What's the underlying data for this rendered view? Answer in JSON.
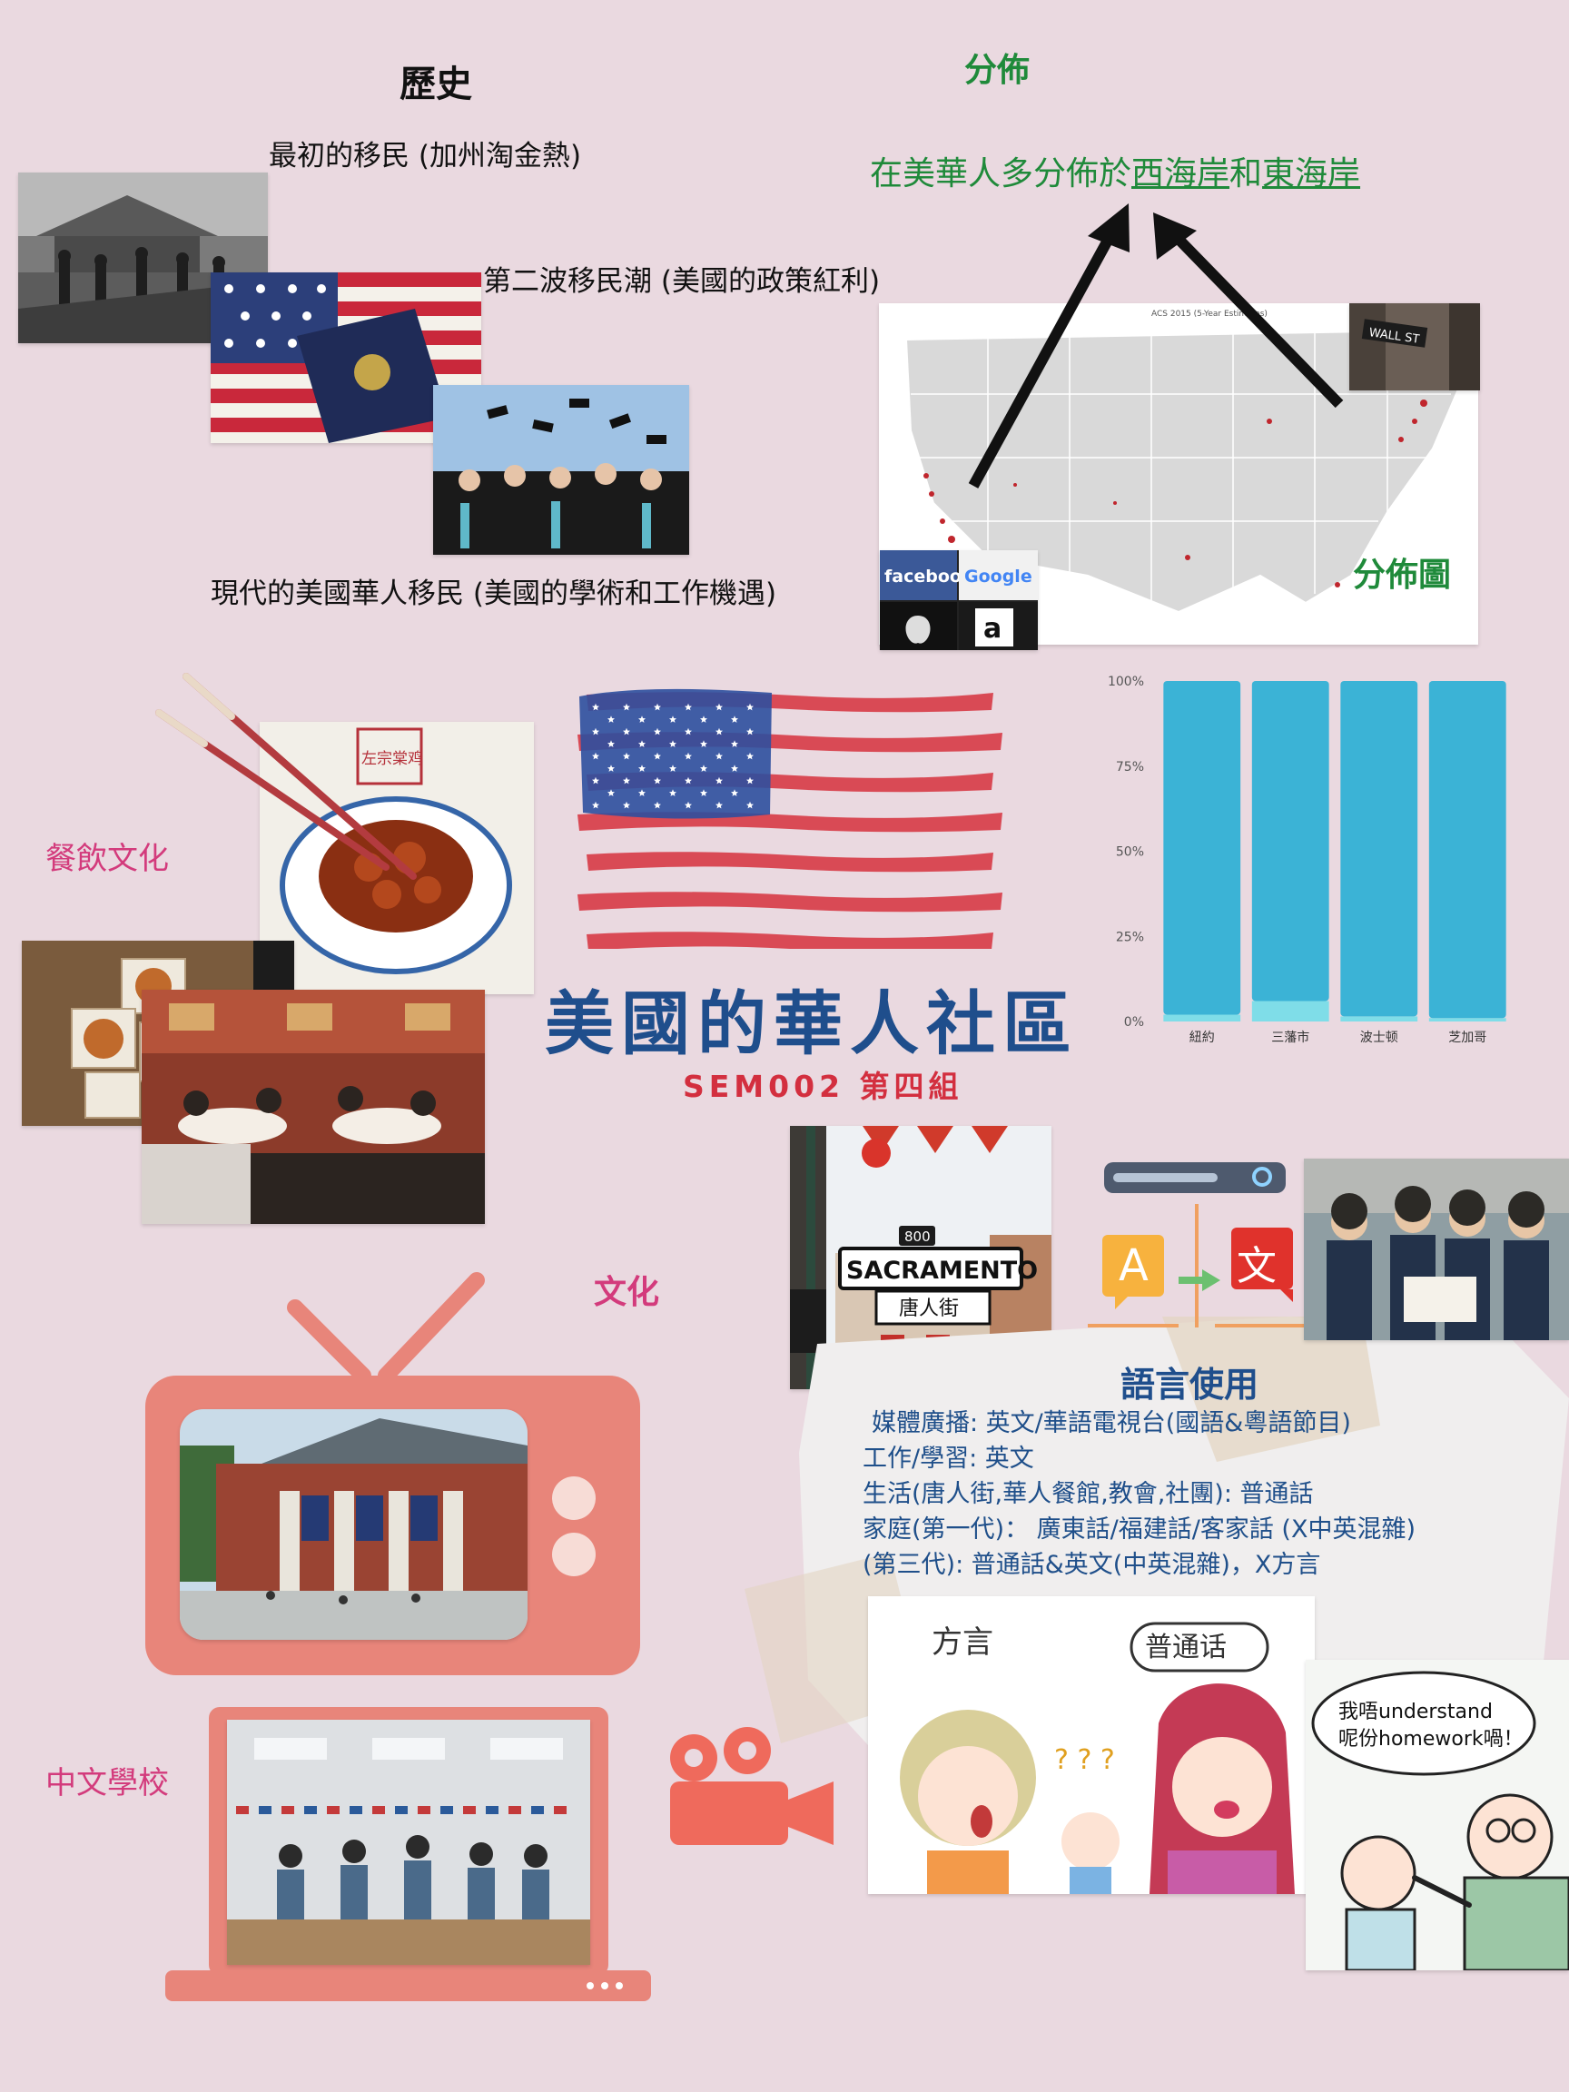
{
  "history": {
    "heading": "歷史",
    "wave1": "最初的移民 (加州淘金熱)",
    "wave2": "第二波移民潮 (美國的政策紅利)",
    "wave3": "現代的美國華人移民 (美國的學術和工作機遇)"
  },
  "distribution": {
    "heading": "分佈",
    "text_prefix": "在美華人多分佈於",
    "west_coast": "西海岸",
    "and": "和",
    "east_coast": "東海岸",
    "map_label": "分佈圖",
    "map_header": "ACS 2015 (5-Year Estimates)"
  },
  "chart_data": {
    "type": "bar",
    "categories": [
      "紐約",
      "三藩市",
      "波士顿",
      "芝加哥"
    ],
    "series": [
      {
        "values": [
          2,
          6,
          1.5,
          1
        ]
      },
      {
        "values": [
          98,
          94,
          98.5,
          99
        ]
      }
    ],
    "ylim": [
      0,
      100
    ],
    "yticks": [
      "0%",
      "25%",
      "50%",
      "75%",
      "100%"
    ],
    "stacked": true,
    "colors": [
      "#7fdde8",
      "#3bb3d6"
    ]
  },
  "food": {
    "heading": "餐飲文化",
    "dish_sign": "左宗棠鸡"
  },
  "title": {
    "main": "美國的華人社區",
    "subtitle": "SEM002  第四組"
  },
  "culture": {
    "heading": "文化"
  },
  "school": {
    "heading": "中文學校"
  },
  "language": {
    "heading": "語言使用",
    "lines": [
      "媒體廣播: 英文/華語電視台(國語&粵語節目)",
      "工作/學習: 英文",
      "生活(唐人街,華人餐館,教會,社團): 普通話",
      "家庭(第一代)：  廣東話/福建話/客家話 (X中英混雜)",
      "(第三代): 普通話&英文(中英混雜)，X方言"
    ],
    "icon_a": "A",
    "icon_wen": "文"
  },
  "signs": {
    "street_no": "800",
    "street": "SACRAMENTO",
    "chinatown": "唐人街"
  },
  "brands": {
    "facebook": "facebook",
    "google": "Google"
  },
  "cartoon": {
    "dialect": "方言",
    "mandarin": "普通话",
    "quote_line1": "我唔understand",
    "quote_line2": "呢份homework喎！"
  },
  "flag_colors": {
    "red": "#d6303c",
    "blue": "#2d4f9e"
  }
}
